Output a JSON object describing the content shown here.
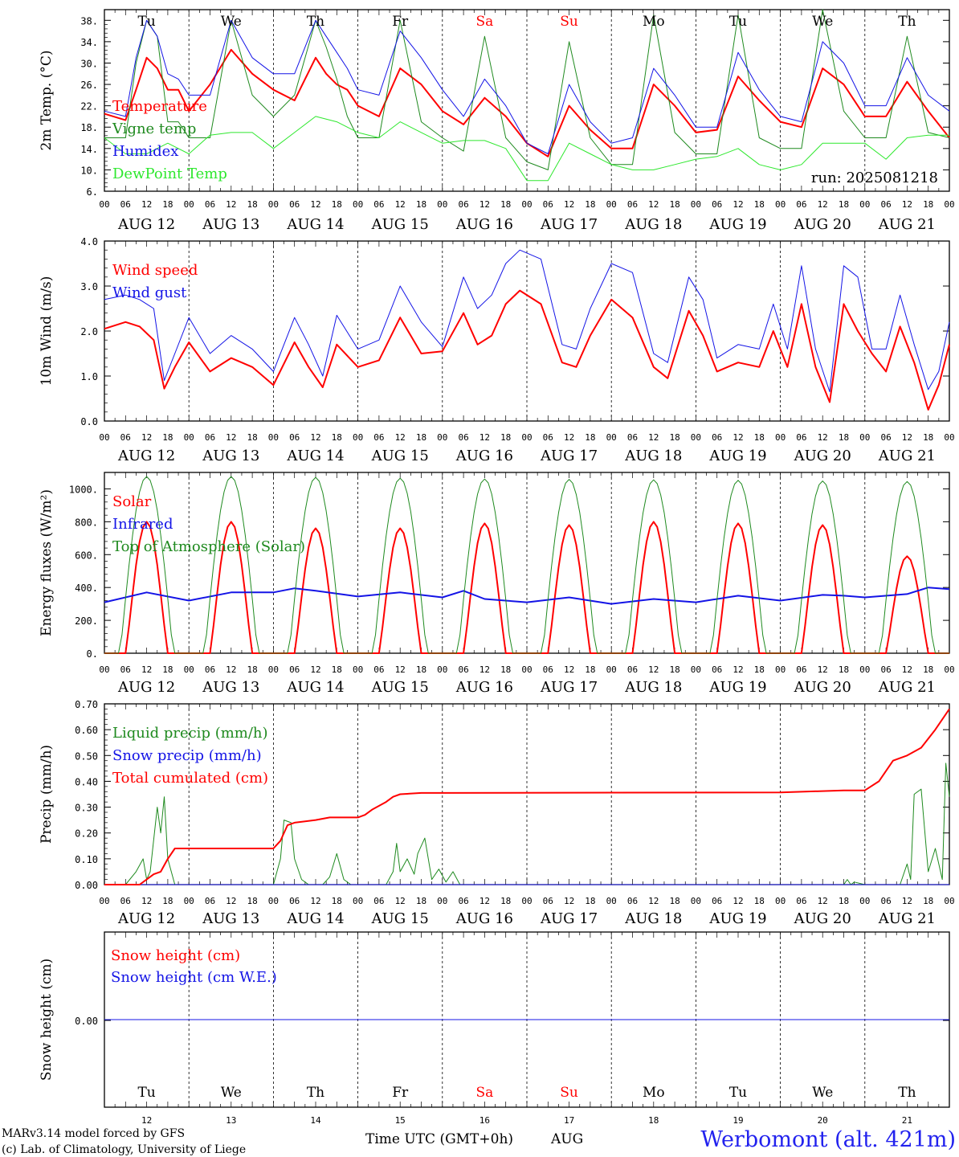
{
  "colors": {
    "red": "#ff0000",
    "green": "#1f8a1f",
    "blue": "#1414e6",
    "lightgreen": "#2ee82e",
    "title_blue": "#2222ee"
  },
  "run_label": "run: 2025081218",
  "hour_ticks": [
    "00",
    "06",
    "12",
    "18"
  ],
  "date_labels": [
    "AUG 12",
    "AUG 13",
    "AUG 14",
    "AUG 15",
    "AUG 16",
    "AUG 17",
    "AUG 18",
    "AUG 19",
    "AUG 20",
    "AUG 21"
  ],
  "weekdays": [
    {
      "label": "Tu",
      "weekend": false
    },
    {
      "label": "We",
      "weekend": false
    },
    {
      "label": "Th",
      "weekend": false
    },
    {
      "label": "Fr",
      "weekend": false
    },
    {
      "label": "Sa",
      "weekend": true
    },
    {
      "label": "Su",
      "weekend": true
    },
    {
      "label": "Mo",
      "weekend": false
    },
    {
      "label": "Tu",
      "weekend": false
    },
    {
      "label": "We",
      "weekend": false
    },
    {
      "label": "Th",
      "weekend": false
    }
  ],
  "day_numbers": [
    "12",
    "13",
    "14",
    "15",
    "16",
    "17",
    "18",
    "19",
    "20",
    "21"
  ],
  "footer": {
    "model": "MARv3.14 model forced by GFS",
    "copyright": "(c) Lab. of Climatology, University of Liege",
    "xlabel": "Time UTC (GMT+0h)",
    "month": "AUG",
    "station": "Werbomont (alt. 421m)"
  },
  "chart_data": [
    {
      "type": "line",
      "ylabel": "2m Temp. (°C)",
      "ylim": [
        6,
        40
      ],
      "yticks": [
        6,
        10,
        14,
        18,
        22,
        26,
        30,
        34,
        38
      ],
      "ytick_labels": [
        "6.",
        "10.",
        "14.",
        "18.",
        "22.",
        "26.",
        "30.",
        "34.",
        "38."
      ],
      "x_unit": "hours since AUG 12 00 UTC",
      "series": [
        {
          "name": "Temperature",
          "color": "red",
          "width": 2,
          "x": [
            0,
            6,
            9,
            12,
            15,
            18,
            21,
            24,
            30,
            36,
            42,
            48,
            54,
            60,
            63,
            66,
            69,
            72,
            78,
            84,
            90,
            96,
            102,
            108,
            114,
            120,
            126,
            132,
            138,
            144,
            150,
            156,
            162,
            168,
            174,
            180,
            186,
            192,
            198,
            204,
            210,
            216,
            222,
            228,
            234,
            240
          ],
          "values": [
            20.5,
            19.3,
            25,
            31,
            29,
            25,
            25,
            21,
            26,
            32.5,
            28,
            25,
            23,
            31,
            28,
            26,
            25,
            22,
            20,
            29,
            26,
            21,
            18.5,
            23.5,
            20,
            15,
            12.5,
            22,
            17.5,
            14,
            14,
            26,
            22,
            17,
            17.5,
            27.5,
            23,
            19,
            18,
            29,
            26,
            20,
            20,
            26.5,
            21,
            16
          ]
        },
        {
          "name": "Vigne temp",
          "color": "green",
          "width": 1,
          "x": [
            0,
            6,
            9,
            12,
            15,
            18,
            21,
            24,
            30,
            36,
            42,
            48,
            54,
            60,
            63,
            66,
            69,
            72,
            78,
            84,
            90,
            96,
            102,
            108,
            114,
            120,
            126,
            132,
            138,
            144,
            150,
            156,
            162,
            168,
            174,
            180,
            186,
            192,
            198,
            204,
            210,
            216,
            222,
            228,
            234,
            240
          ],
          "values": [
            16,
            16,
            30,
            38,
            35,
            19,
            19,
            16,
            16,
            38,
            24,
            20,
            24,
            38,
            33,
            27,
            20,
            16,
            16,
            38,
            19,
            16,
            13.5,
            35,
            16,
            11.5,
            10,
            34,
            16,
            11,
            11,
            39,
            17,
            13,
            13,
            39,
            16,
            14,
            14,
            40,
            21,
            16,
            16,
            35,
            17,
            16
          ]
        },
        {
          "name": "Humidex",
          "color": "blue",
          "width": 1,
          "x": [
            0,
            6,
            9,
            12,
            15,
            18,
            21,
            24,
            30,
            36,
            42,
            48,
            54,
            60,
            63,
            66,
            69,
            72,
            78,
            84,
            90,
            96,
            102,
            108,
            114,
            120,
            126,
            132,
            138,
            144,
            150,
            156,
            162,
            168,
            174,
            180,
            186,
            192,
            198,
            204,
            210,
            216,
            222,
            228,
            234,
            240
          ],
          "values": [
            21,
            20,
            31,
            38,
            35,
            28,
            27,
            24,
            24,
            38,
            31,
            28,
            28,
            38,
            35,
            32,
            29,
            25,
            24,
            36,
            31,
            25,
            20,
            27,
            22,
            15,
            13,
            26,
            19,
            15,
            16,
            29,
            24,
            18,
            18,
            32,
            25,
            20,
            19,
            34,
            30,
            22,
            22,
            31,
            24,
            21
          ]
        },
        {
          "name": "DewPoint Temp",
          "color": "lightgreen",
          "width": 1,
          "x": [
            0,
            6,
            12,
            18,
            24,
            30,
            36,
            42,
            48,
            54,
            60,
            66,
            72,
            78,
            84,
            90,
            96,
            102,
            108,
            114,
            120,
            126,
            132,
            138,
            144,
            150,
            156,
            162,
            168,
            174,
            180,
            186,
            192,
            198,
            204,
            210,
            216,
            222,
            228,
            234,
            240
          ],
          "values": [
            16,
            13,
            13,
            15,
            13,
            16.5,
            17,
            17,
            14,
            17,
            20,
            19,
            17,
            16,
            19,
            17,
            15,
            15.5,
            15.5,
            14,
            8,
            8,
            15,
            13,
            11,
            10,
            10,
            11,
            12,
            12.5,
            14,
            11,
            10,
            11,
            15,
            15,
            15,
            12,
            16,
            16.5,
            16.5
          ]
        }
      ],
      "legend": [
        "Temperature",
        "Vigne temp",
        "Humidex",
        "DewPoint Temp"
      ]
    },
    {
      "type": "line",
      "ylabel": "10m Wind (m/s)",
      "ylim": [
        0,
        4
      ],
      "yticks": [
        0,
        1,
        2,
        3,
        4
      ],
      "ytick_labels": [
        "0.0",
        "1.0",
        "2.0",
        "3.0",
        "4.0"
      ],
      "x_unit": "hours since AUG 12 00 UTC",
      "series": [
        {
          "name": "Wind speed",
          "color": "red",
          "width": 2,
          "x": [
            0,
            6,
            10,
            14,
            17,
            20,
            24,
            30,
            36,
            42,
            48,
            54,
            58,
            62,
            66,
            72,
            78,
            84,
            90,
            96,
            102,
            106,
            110,
            114,
            118,
            124,
            130,
            134,
            138,
            144,
            150,
            156,
            160,
            166,
            170,
            174,
            180,
            186,
            190,
            194,
            198,
            202,
            206,
            210,
            214,
            218,
            222,
            226,
            230,
            234,
            237,
            240
          ],
          "values": [
            2.05,
            2.2,
            2.1,
            1.8,
            0.72,
            1.2,
            1.75,
            1.1,
            1.4,
            1.2,
            0.8,
            1.75,
            1.2,
            0.75,
            1.7,
            1.2,
            1.35,
            2.3,
            1.5,
            1.55,
            2.4,
            1.7,
            1.9,
            2.6,
            2.9,
            2.6,
            1.3,
            1.2,
            1.9,
            2.7,
            2.3,
            1.2,
            0.95,
            2.45,
            1.9,
            1.1,
            1.3,
            1.2,
            2.0,
            1.2,
            2.6,
            1.2,
            0.42,
            2.6,
            2.0,
            1.5,
            1.1,
            2.1,
            1.3,
            0.25,
            0.8,
            1.7
          ]
        },
        {
          "name": "Wind gust",
          "color": "blue",
          "width": 1,
          "x": [
            0,
            6,
            10,
            14,
            17,
            20,
            24,
            30,
            36,
            42,
            48,
            54,
            58,
            62,
            66,
            72,
            78,
            84,
            90,
            96,
            102,
            106,
            110,
            114,
            118,
            124,
            130,
            134,
            138,
            144,
            150,
            156,
            160,
            166,
            170,
            174,
            180,
            186,
            190,
            194,
            198,
            202,
            206,
            210,
            214,
            218,
            222,
            226,
            230,
            234,
            237,
            240
          ],
          "values": [
            2.7,
            2.8,
            2.7,
            2.5,
            0.9,
            1.5,
            2.3,
            1.5,
            1.9,
            1.6,
            1.1,
            2.3,
            1.7,
            1.0,
            2.35,
            1.6,
            1.8,
            3.0,
            2.2,
            1.65,
            3.2,
            2.5,
            2.8,
            3.5,
            3.8,
            3.6,
            1.7,
            1.6,
            2.5,
            3.5,
            3.3,
            1.5,
            1.3,
            3.2,
            2.7,
            1.4,
            1.7,
            1.6,
            2.6,
            1.6,
            3.45,
            1.6,
            0.65,
            3.45,
            3.2,
            1.6,
            1.6,
            2.8,
            1.7,
            0.7,
            1.1,
            2.2
          ]
        }
      ],
      "legend": [
        "Wind speed",
        "Wind gust"
      ]
    },
    {
      "type": "line",
      "ylabel": "Energy fluxes (W/m²)",
      "ylim": [
        0,
        1100
      ],
      "yticks": [
        0,
        200,
        400,
        600,
        800,
        1000
      ],
      "ytick_labels": [
        "0.",
        "200.",
        "400.",
        "600.",
        "800.",
        "1000."
      ],
      "x_unit": "hours since AUG 12 00 UTC",
      "series": [
        {
          "name": "Solar",
          "color": "red",
          "width": 2,
          "daily_peaks": [
            800,
            800,
            760,
            760,
            790,
            780,
            800,
            790,
            780,
            590
          ]
        },
        {
          "name": "Infrared",
          "color": "blue",
          "width": 2,
          "x": [
            0,
            12,
            24,
            36,
            48,
            54,
            60,
            72,
            84,
            96,
            102,
            108,
            120,
            132,
            144,
            156,
            168,
            180,
            192,
            204,
            210,
            216,
            228,
            234,
            240
          ],
          "values": [
            310,
            370,
            320,
            370,
            370,
            395,
            380,
            345,
            370,
            340,
            380,
            330,
            310,
            340,
            300,
            330,
            310,
            350,
            320,
            355,
            350,
            340,
            360,
            400,
            390
          ]
        },
        {
          "name": "Top of Atmosphere (Solar)",
          "color": "green",
          "width": 1,
          "daily_peaks": [
            1075,
            1075,
            1070,
            1065,
            1060,
            1058,
            1055,
            1052,
            1048,
            1045
          ]
        }
      ],
      "legend": [
        "Solar",
        "Infrared",
        "Top of Atmosphere (Solar)"
      ]
    },
    {
      "type": "line",
      "ylabel": "Precip (mm/h)",
      "ylim": [
        0,
        0.7
      ],
      "yticks": [
        0,
        0.1,
        0.2,
        0.3,
        0.4,
        0.5,
        0.6,
        0.7
      ],
      "ytick_labels": [
        "0.00",
        "0.10",
        "0.20",
        "0.30",
        "0.40",
        "0.50",
        "0.60",
        "0.70"
      ],
      "x_unit": "hours since AUG 12 00 UTC",
      "series": [
        {
          "name": "Liquid precip (mm/h)",
          "color": "green",
          "width": 1,
          "x": [
            0,
            6,
            9,
            11,
            12,
            13,
            15,
            16,
            17,
            18,
            20,
            24,
            48,
            50,
            51,
            53,
            54,
            56,
            58,
            60,
            62,
            64,
            66,
            68,
            70,
            72,
            80,
            82,
            83,
            84,
            86,
            88,
            89,
            91,
            93,
            95,
            97,
            99,
            101,
            104,
            120,
            200,
            210,
            211,
            212,
            213,
            216,
            226,
            228,
            229,
            230,
            232,
            234,
            236,
            238,
            239,
            240
          ],
          "values": [
            0,
            0,
            0.05,
            0.1,
            0.02,
            0.05,
            0.3,
            0.2,
            0.34,
            0.1,
            0,
            0,
            0,
            0.1,
            0.25,
            0.24,
            0.1,
            0.02,
            0,
            0,
            0,
            0.03,
            0.12,
            0.02,
            0,
            0,
            0,
            0.05,
            0.16,
            0.05,
            0.1,
            0.04,
            0.12,
            0.18,
            0.02,
            0.06,
            0.01,
            0.05,
            0,
            0,
            0,
            0,
            0,
            0.02,
            0,
            0.01,
            0,
            0,
            0.08,
            0.02,
            0.35,
            0.37,
            0.05,
            0.14,
            0.02,
            0.47,
            0.34
          ]
        },
        {
          "name": "Snow precip (mm/h)",
          "color": "blue",
          "width": 1,
          "x": [
            0,
            240
          ],
          "values": [
            0,
            0
          ]
        },
        {
          "name": "Total cumulated (cm)",
          "color": "red",
          "width": 2,
          "x": [
            0,
            10,
            12,
            14,
            16,
            18,
            20,
            48,
            50,
            52,
            54,
            60,
            64,
            66,
            70,
            72,
            74,
            76,
            80,
            82,
            84,
            90,
            96,
            130,
            192,
            210,
            216,
            220,
            224,
            228,
            232,
            236,
            240
          ],
          "values": [
            0,
            0,
            0.02,
            0.04,
            0.05,
            0.1,
            0.14,
            0.14,
            0.17,
            0.23,
            0.24,
            0.25,
            0.26,
            0.26,
            0.26,
            0.26,
            0.27,
            0.29,
            0.32,
            0.34,
            0.35,
            0.355,
            0.355,
            0.356,
            0.357,
            0.365,
            0.365,
            0.4,
            0.48,
            0.5,
            0.53,
            0.6,
            0.68
          ]
        }
      ],
      "legend": [
        "Liquid precip (mm/h)",
        "Snow precip (mm/h)",
        "Total cumulated (cm)"
      ]
    },
    {
      "type": "line",
      "ylabel": "Snow height (cm)",
      "yticks": [
        0
      ],
      "ytick_labels": [
        "0.00"
      ],
      "x_unit": "hours since AUG 12 00 UTC",
      "series": [
        {
          "name": "Snow height (cm)",
          "color": "red",
          "width": 1,
          "x": [
            0,
            240
          ],
          "values": [
            0,
            0
          ]
        },
        {
          "name": "Snow height (cm W.E.)",
          "color": "blue",
          "width": 1,
          "x": [
            0,
            240
          ],
          "values": [
            0,
            0
          ]
        }
      ],
      "legend": [
        "Snow height (cm)",
        "Snow height (cm W.E.)"
      ]
    }
  ]
}
